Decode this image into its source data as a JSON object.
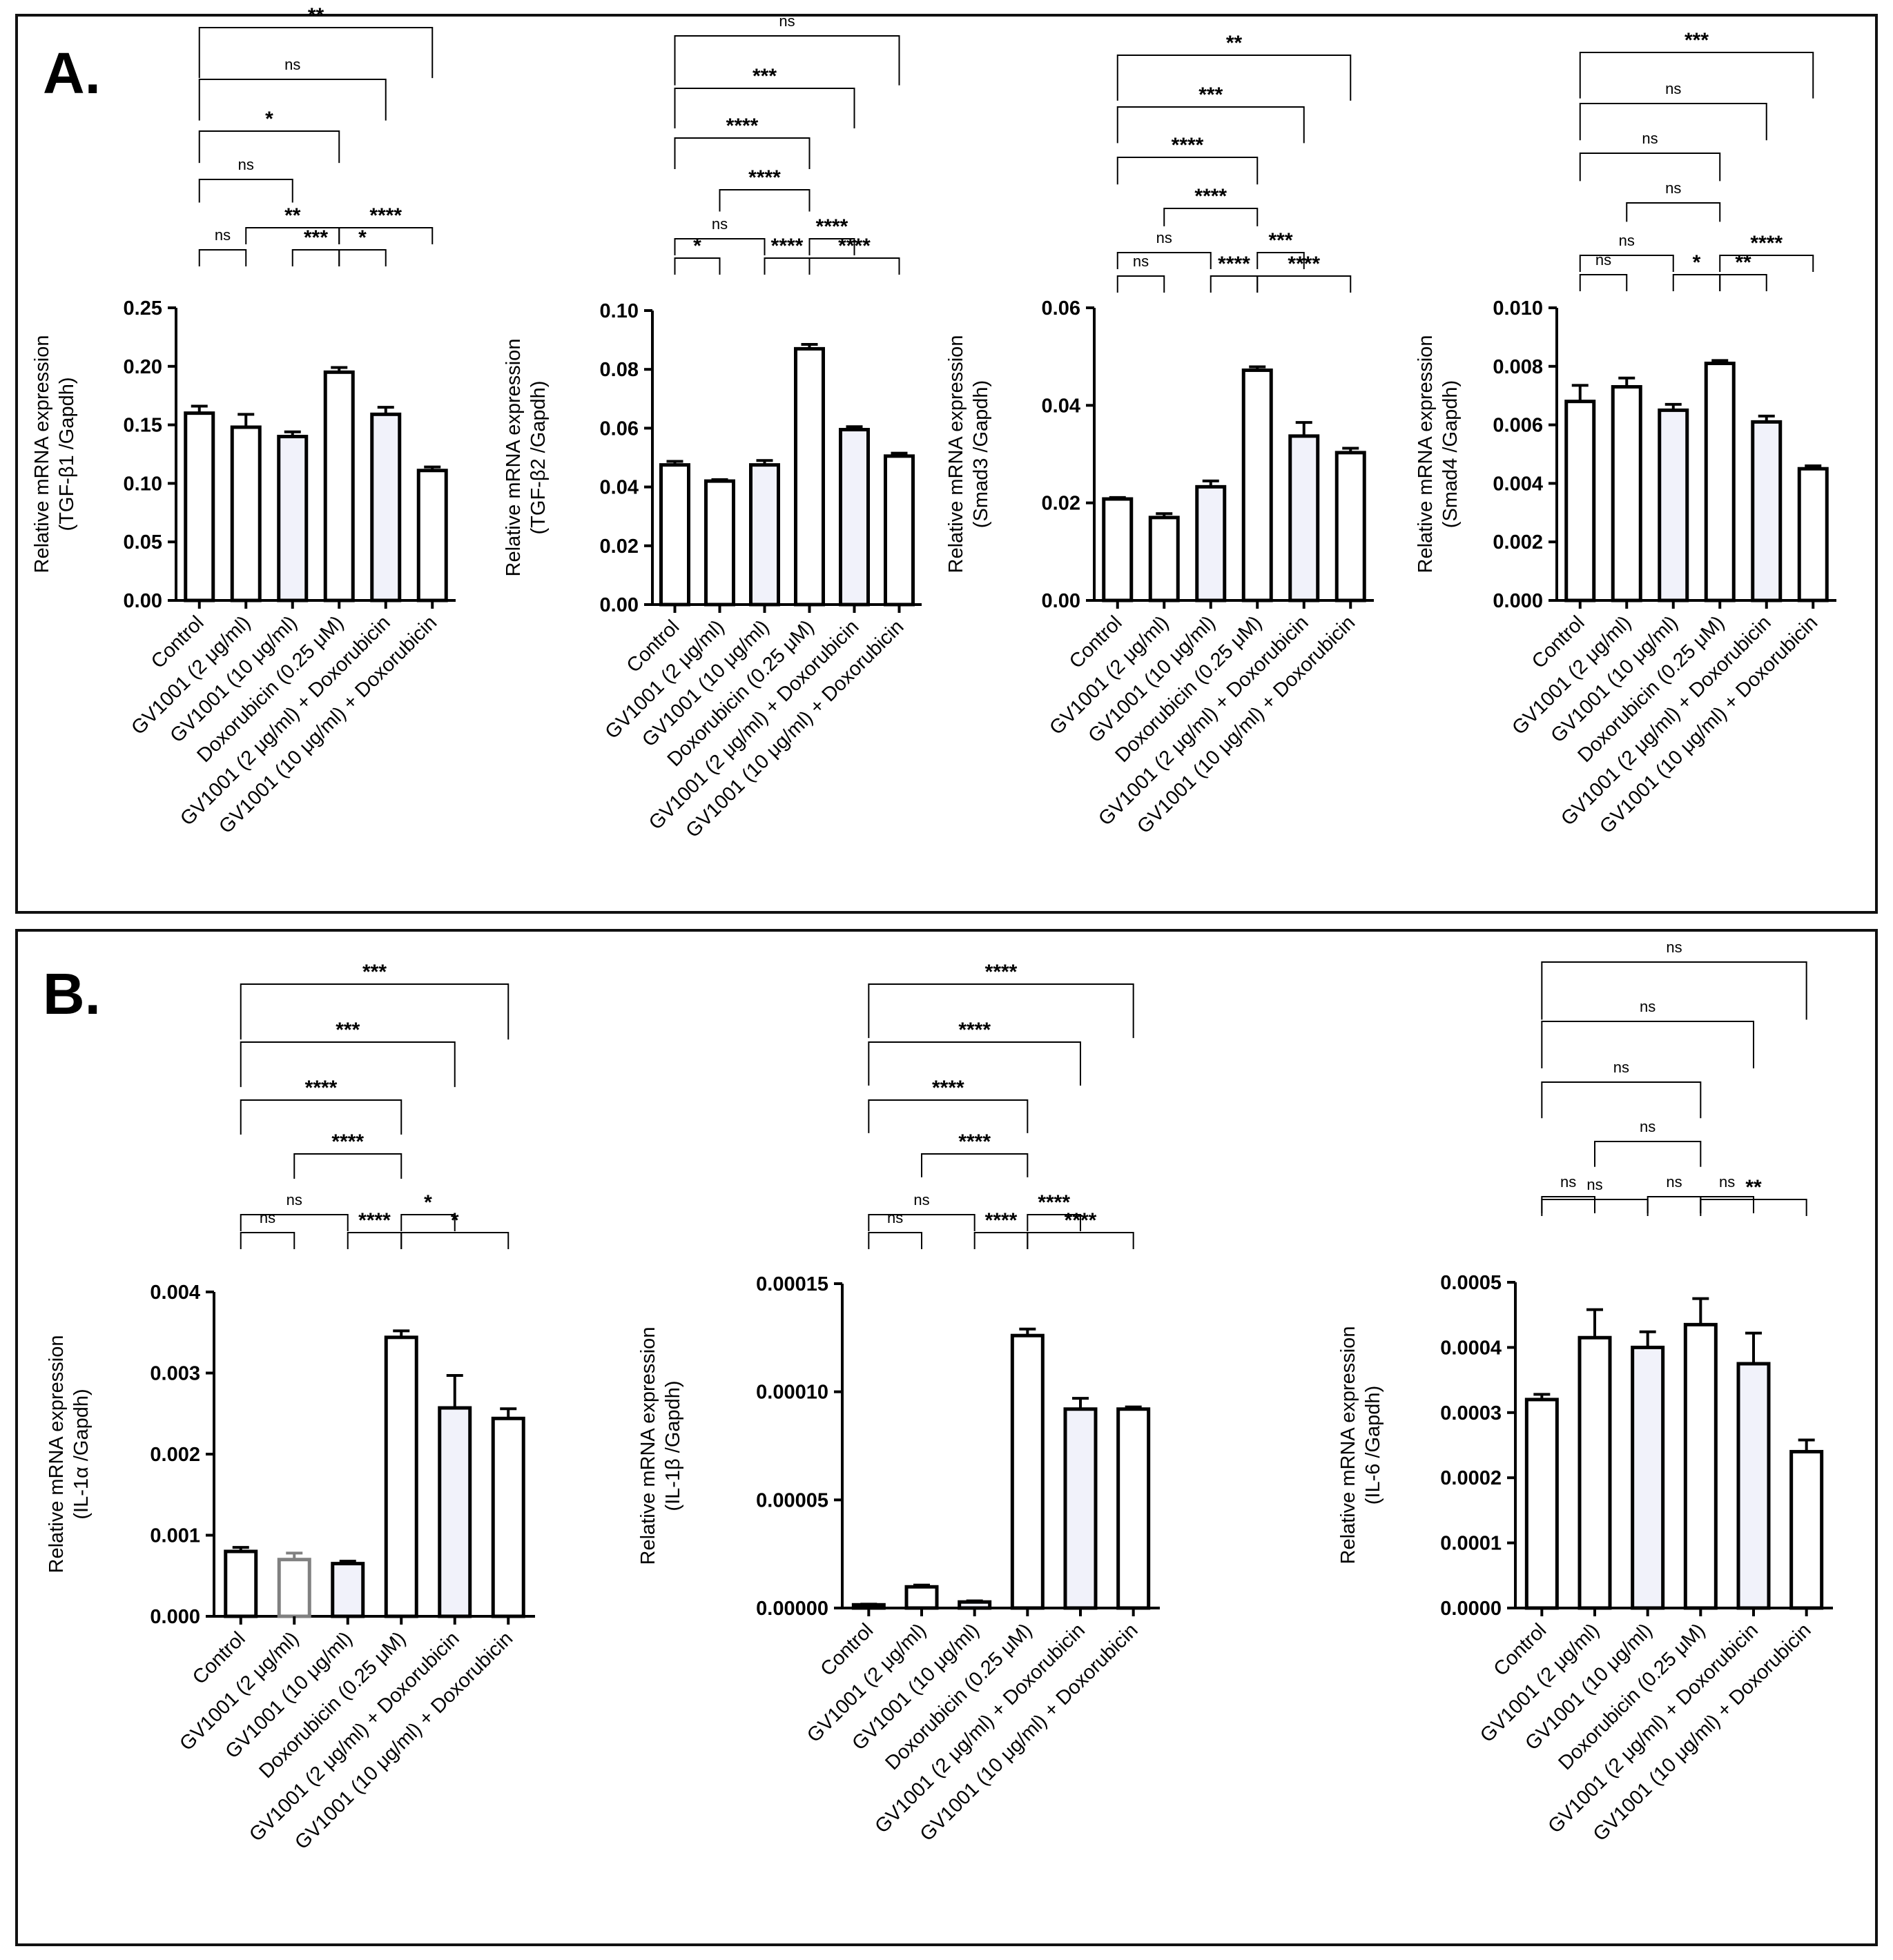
{
  "panels": [
    {
      "letter": "A."
    },
    {
      "letter": "B."
    }
  ],
  "chart_data": [
    {
      "type": "bar",
      "panel": "A",
      "categories": [
        "Control",
        "GV1001 (2 μg/ml)",
        "GV1001 (10 μg/ml)",
        "Doxorubicin (0.25 μM)",
        "GV1001 (2 μg/ml) + Doxorubicin",
        "GV1001 (10 μg/ml) + Doxorubicin"
      ],
      "values": [
        0.16,
        0.148,
        0.14,
        0.195,
        0.159,
        0.111
      ],
      "errors": [
        0.006,
        0.011,
        0.004,
        0.004,
        0.006,
        0.003
      ],
      "bar_colors": [
        "#000000",
        "#000000",
        "#000000",
        "#000000",
        "#000000",
        "#000000"
      ],
      "bar_fills": [
        "#ffffff",
        "#ffffff",
        "#f1f2fa",
        "#ffffff",
        "#f1f2fa",
        "#ffffff"
      ],
      "ylabel": [
        "Relative mRNA expression",
        "(TGF-β1 /Gapdh)"
      ],
      "ylim": [
        0,
        0.25
      ],
      "yticks": [
        "0.00",
        "0.05",
        "0.10",
        "0.15",
        "0.20",
        "0.25"
      ],
      "comparisons": [
        {
          "a": 0,
          "b": 1,
          "label": "ns",
          "level": 0
        },
        {
          "a": 2,
          "b": 3,
          "label": "***",
          "level": 0
        },
        {
          "a": 3,
          "b": 4,
          "label": "*",
          "level": 0
        },
        {
          "a": 1,
          "b": 3,
          "label": "**",
          "level": 1
        },
        {
          "a": 3,
          "b": 5,
          "label": "****",
          "level": 1
        },
        {
          "a": 0,
          "b": 2,
          "label": "ns",
          "level": 2
        },
        {
          "a": 0,
          "b": 3,
          "label": "*",
          "level": 3
        },
        {
          "a": 0,
          "b": 4,
          "label": "ns",
          "level": 4
        },
        {
          "a": 0,
          "b": 5,
          "label": "**",
          "level": 5
        }
      ]
    },
    {
      "type": "bar",
      "panel": "A",
      "categories": [
        "Control",
        "GV1001 (2 μg/ml)",
        "GV1001 (10 μg/ml)",
        "Doxorubicin (0.25 μM)",
        "GV1001 (2 μg/ml) + Doxorubicin",
        "GV1001 (10 μg/ml) + Doxorubicin"
      ],
      "values": [
        0.0475,
        0.042,
        0.0475,
        0.087,
        0.0595,
        0.0505
      ],
      "errors": [
        0.0012,
        0.0005,
        0.0015,
        0.0015,
        0.001,
        0.001
      ],
      "bar_colors": [
        "#000000",
        "#000000",
        "#000000",
        "#000000",
        "#000000",
        "#000000"
      ],
      "bar_fills": [
        "#ffffff",
        "#ffffff",
        "#f1f2fa",
        "#ffffff",
        "#f1f2fa",
        "#ffffff"
      ],
      "ylabel": [
        "Relative mRNA expression",
        "(TGF-β2 /Gapdh)"
      ],
      "ylim": [
        0,
        0.1
      ],
      "yticks": [
        "0.00",
        "0.02",
        "0.04",
        "0.06",
        "0.08",
        "0.10"
      ],
      "comparisons": [
        {
          "a": 0,
          "b": 1,
          "label": "*",
          "level": 0
        },
        {
          "a": 2,
          "b": 3,
          "label": "****",
          "level": 0
        },
        {
          "a": 3,
          "b": 5,
          "label": "****",
          "level": 0
        },
        {
          "a": 0,
          "b": 2,
          "label": "ns",
          "level": 1
        },
        {
          "a": 3,
          "b": 4,
          "label": "****",
          "level": 1
        },
        {
          "a": 1,
          "b": 3,
          "label": "****",
          "level": 2
        },
        {
          "a": 0,
          "b": 3,
          "label": "****",
          "level": 3
        },
        {
          "a": 0,
          "b": 4,
          "label": "***",
          "level": 4
        },
        {
          "a": 0,
          "b": 5,
          "label": "ns",
          "level": 5
        }
      ]
    },
    {
      "type": "bar",
      "panel": "A",
      "categories": [
        "Control",
        "GV1001 (2 μg/ml)",
        "GV1001 (10 μg/ml)",
        "Doxorubicin (0.25 μM)",
        "GV1001 (2 μg/ml) + Doxorubicin",
        "GV1001 (10 μg/ml) + Doxorubicin"
      ],
      "values": [
        0.0208,
        0.017,
        0.0233,
        0.0472,
        0.0337,
        0.0303
      ],
      "errors": [
        0.0003,
        0.0008,
        0.0012,
        0.0007,
        0.0028,
        0.0009
      ],
      "bar_colors": [
        "#000000",
        "#000000",
        "#000000",
        "#000000",
        "#000000",
        "#000000"
      ],
      "bar_fills": [
        "#ffffff",
        "#ffffff",
        "#f1f2fa",
        "#ffffff",
        "#f1f2fa",
        "#ffffff"
      ],
      "ylabel": [
        "Relative mRNA expression",
        "(Smad3 /Gapdh)"
      ],
      "ylim": [
        0,
        0.06
      ],
      "yticks": [
        "0.00",
        "0.02",
        "0.04",
        "0.06"
      ],
      "comparisons": [
        {
          "a": 0,
          "b": 1,
          "label": "ns",
          "level": 0
        },
        {
          "a": 2,
          "b": 3,
          "label": "****",
          "level": 0
        },
        {
          "a": 3,
          "b": 5,
          "label": "****",
          "level": 0
        },
        {
          "a": 0,
          "b": 2,
          "label": "ns",
          "level": 1
        },
        {
          "a": 3,
          "b": 4,
          "label": "***",
          "level": 1
        },
        {
          "a": 1,
          "b": 3,
          "label": "****",
          "level": 2
        },
        {
          "a": 0,
          "b": 3,
          "label": "****",
          "level": 3
        },
        {
          "a": 0,
          "b": 4,
          "label": "***",
          "level": 4
        },
        {
          "a": 0,
          "b": 5,
          "label": "**",
          "level": 5
        }
      ]
    },
    {
      "type": "bar",
      "panel": "A",
      "categories": [
        "Control",
        "GV1001 (2 μg/ml)",
        "GV1001 (10 μg/ml)",
        "Doxorubicin (0.25 μM)",
        "GV1001 (2 μg/ml) + Doxorubicin",
        "GV1001 (10 μg/ml) + Doxorubicin"
      ],
      "values": [
        0.0068,
        0.0073,
        0.0065,
        0.0081,
        0.0061,
        0.0045
      ],
      "errors": [
        0.00055,
        0.0003,
        0.0002,
        0.0001,
        0.0002,
        0.0001
      ],
      "bar_colors": [
        "#000000",
        "#000000",
        "#000000",
        "#000000",
        "#000000",
        "#000000"
      ],
      "bar_fills": [
        "#ffffff",
        "#ffffff",
        "#f1f2fa",
        "#ffffff",
        "#f1f2fa",
        "#ffffff"
      ],
      "ylabel": [
        "Relative mRNA expression",
        "(Smad4 /Gapdh)"
      ],
      "ylim": [
        0,
        0.01
      ],
      "yticks": [
        "0.000",
        "0.002",
        "0.004",
        "0.006",
        "0.008",
        "0.010"
      ],
      "comparisons": [
        {
          "a": 0,
          "b": 1,
          "label": "ns",
          "level": 0
        },
        {
          "a": 2,
          "b": 3,
          "label": "*",
          "level": 0
        },
        {
          "a": 3,
          "b": 4,
          "label": "**",
          "level": 0
        },
        {
          "a": 0,
          "b": 2,
          "label": "ns",
          "level": 1
        },
        {
          "a": 3,
          "b": 5,
          "label": "****",
          "level": 1
        },
        {
          "a": 1,
          "b": 3,
          "label": "ns",
          "level": 2
        },
        {
          "a": 0,
          "b": 3,
          "label": "ns",
          "level": 3
        },
        {
          "a": 0,
          "b": 4,
          "label": "ns",
          "level": 4
        },
        {
          "a": 0,
          "b": 5,
          "label": "***",
          "level": 5
        }
      ]
    },
    {
      "type": "bar",
      "panel": "B",
      "categories": [
        "Control",
        "GV1001 (2 μg/ml)",
        "GV1001 (10 μg/ml)",
        "Doxorubicin (0.25 μM)",
        "GV1001 (2 μg/ml) + Doxorubicin",
        "GV1001 (10 μg/ml) + Doxorubicin"
      ],
      "values": [
        0.0008,
        0.0007,
        0.00065,
        0.00344,
        0.00257,
        0.00244
      ],
      "errors": [
        5e-05,
        8e-05,
        3e-05,
        8e-05,
        0.0004,
        0.00012
      ],
      "bar_colors": [
        "#000000",
        "#808080",
        "#000000",
        "#000000",
        "#000000",
        "#000000"
      ],
      "bar_fills": [
        "#ffffff",
        "#ffffff",
        "#f1f2fa",
        "#ffffff",
        "#f1f2fa",
        "#ffffff"
      ],
      "ylabel": [
        "Relative mRNA expression",
        "(IL-1α /Gapdh)"
      ],
      "ylim": [
        0,
        0.004
      ],
      "yticks": [
        "0.000",
        "0.001",
        "0.002",
        "0.003",
        "0.004"
      ],
      "comparisons": [
        {
          "a": 0,
          "b": 1,
          "label": "ns",
          "level": 0
        },
        {
          "a": 2,
          "b": 3,
          "label": "****",
          "level": 0
        },
        {
          "a": 3,
          "b": 5,
          "label": "*",
          "level": 0
        },
        {
          "a": 0,
          "b": 2,
          "label": "ns",
          "level": 1
        },
        {
          "a": 3,
          "b": 4,
          "label": "*",
          "level": 1
        },
        {
          "a": 1,
          "b": 3,
          "label": "****",
          "level": 2
        },
        {
          "a": 0,
          "b": 3,
          "label": "****",
          "level": 3
        },
        {
          "a": 0,
          "b": 4,
          "label": "***",
          "level": 4
        },
        {
          "a": 0,
          "b": 5,
          "label": "***",
          "level": 5
        }
      ]
    },
    {
      "type": "bar",
      "panel": "B",
      "categories": [
        "Control",
        "GV1001 (2 μg/ml)",
        "GV1001 (10 μg/ml)",
        "Doxorubicin (0.25 μM)",
        "GV1001 (2 μg/ml) + Doxorubicin",
        "GV1001 (10 μg/ml) + Doxorubicin"
      ],
      "values": [
        1.5e-06,
        9.8e-06,
        2.8e-06,
        0.000126,
        9.2e-05,
        9.2e-05
      ],
      "errors": [
        3e-07,
        8e-07,
        5e-07,
        3e-06,
        5e-06,
        1e-06
      ],
      "bar_colors": [
        "#000000",
        "#000000",
        "#000000",
        "#000000",
        "#000000",
        "#000000"
      ],
      "bar_fills": [
        "#ffffff",
        "#ffffff",
        "#f1f2fa",
        "#ffffff",
        "#f1f2fa",
        "#ffffff"
      ],
      "ylabel": [
        "Relative mRNA expression",
        "(IL-1β /Gapdh)"
      ],
      "ylim": [
        0,
        0.00015
      ],
      "yticks": [
        "0.00000",
        "0.00005",
        "0.00010",
        "0.00015"
      ],
      "comparisons": [
        {
          "a": 0,
          "b": 1,
          "label": "ns",
          "level": 0
        },
        {
          "a": 2,
          "b": 3,
          "label": "****",
          "level": 0
        },
        {
          "a": 3,
          "b": 5,
          "label": "****",
          "level": 0
        },
        {
          "a": 0,
          "b": 2,
          "label": "ns",
          "level": 1
        },
        {
          "a": 3,
          "b": 4,
          "label": "****",
          "level": 1
        },
        {
          "a": 1,
          "b": 3,
          "label": "****",
          "level": 2
        },
        {
          "a": 0,
          "b": 3,
          "label": "****",
          "level": 3
        },
        {
          "a": 0,
          "b": 4,
          "label": "****",
          "level": 4
        },
        {
          "a": 0,
          "b": 5,
          "label": "****",
          "level": 5
        }
      ]
    },
    {
      "type": "bar",
      "panel": "B",
      "categories": [
        "Control",
        "GV1001 (2 μg/ml)",
        "GV1001 (10 μg/ml)",
        "Doxorubicin (0.25 μM)",
        "GV1001 (2 μg/ml) + Doxorubicin",
        "GV1001 (10 μg/ml) + Doxorubicin"
      ],
      "values": [
        0.00032,
        0.000415,
        0.0004,
        0.000435,
        0.000375,
        0.00024
      ],
      "errors": [
        8e-06,
        4.3e-05,
        2.4e-05,
        4e-05,
        4.7e-05,
        1.8e-05
      ],
      "bar_colors": [
        "#000000",
        "#000000",
        "#000000",
        "#000000",
        "#000000",
        "#000000"
      ],
      "bar_fills": [
        "#ffffff",
        "#ffffff",
        "#f1f2fa",
        "#ffffff",
        "#f1f2fa",
        "#ffffff"
      ],
      "ylabel": [
        "Relative mRNA expression",
        "(IL-6 /Gapdh)"
      ],
      "ylim": [
        0,
        0.0005
      ],
      "yticks": [
        "0.0000",
        "0.0001",
        "0.0002",
        "0.0003",
        "0.0004",
        "0.0005"
      ],
      "comparisons": [
        {
          "a": 0,
          "b": 1,
          "label": "ns",
          "level": 0
        },
        {
          "a": 2,
          "b": 3,
          "label": "ns",
          "level": 0
        },
        {
          "a": 3,
          "b": 4,
          "label": "ns",
          "level": 0
        },
        {
          "a": 0,
          "b": 2,
          "label": "ns",
          "level": 1
        },
        {
          "a": 3,
          "b": 5,
          "label": "**",
          "level": 1
        },
        {
          "a": 1,
          "b": 3,
          "label": "ns",
          "level": 2
        },
        {
          "a": 0,
          "b": 3,
          "label": "ns",
          "level": 3
        },
        {
          "a": 0,
          "b": 4,
          "label": "ns",
          "level": 4
        },
        {
          "a": 0,
          "b": 5,
          "label": "ns",
          "level": 5
        }
      ]
    }
  ]
}
